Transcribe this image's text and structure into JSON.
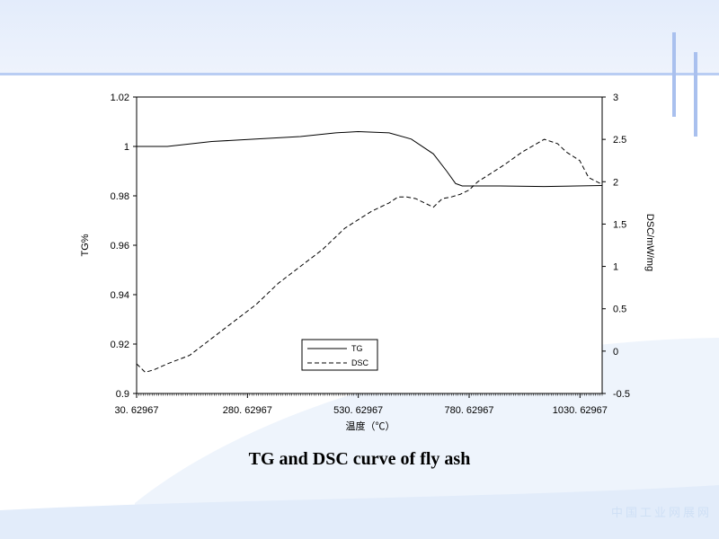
{
  "slide": {
    "title": "TG and DSC curve of fly ash",
    "watermark": "中国工业网展网"
  },
  "chart_data": {
    "type": "line",
    "xlabel": "温度（℃）",
    "ylabel_left": "TG%",
    "ylabel_right": "DSC/mW/mg",
    "x_ticks": [
      30.62967,
      280.62967,
      530.62967,
      780.62967,
      1030.62967
    ],
    "x_tick_labels": [
      "30. 62967",
      "280. 62967",
      "530. 62967",
      "780. 62967",
      "1030. 62967"
    ],
    "xlim": [
      30.62967,
      1080.62967
    ],
    "ylim_left": [
      0.9,
      1.02
    ],
    "y_ticks_left": [
      0.9,
      0.92,
      0.94,
      0.96,
      0.98,
      1,
      1.02
    ],
    "y_tick_labels_left": [
      "0.9",
      "0.92",
      "0.94",
      "0.96",
      "0.98",
      "1",
      "1.02"
    ],
    "ylim_right": [
      -0.5,
      3
    ],
    "y_ticks_right": [
      -0.5,
      0,
      0.5,
      1,
      1.5,
      2,
      2.5,
      3
    ],
    "y_tick_labels_right": [
      "-0.5",
      "0",
      "0.5",
      "1",
      "1.5",
      "2",
      "2.5",
      "3"
    ],
    "legend_position": "bottom-center",
    "series": [
      {
        "name": "TG",
        "axis": "left",
        "style": "solid",
        "x": [
          30.6,
          100,
          200,
          300,
          400,
          480,
          530,
          600,
          650,
          700,
          730,
          750,
          765,
          780,
          850,
          950,
          1080
        ],
        "y": [
          1.0,
          1.0,
          1.002,
          1.003,
          1.004,
          1.0055,
          1.006,
          1.0055,
          1.003,
          0.997,
          0.99,
          0.985,
          0.984,
          0.984,
          0.984,
          0.9838,
          0.9842
        ]
      },
      {
        "name": "DSC",
        "axis": "right",
        "style": "dashed",
        "x": [
          30.6,
          50,
          70,
          100,
          150,
          200,
          250,
          300,
          350,
          400,
          450,
          480,
          500,
          530,
          560,
          600,
          620,
          640,
          660,
          680,
          700,
          720,
          740,
          760,
          780,
          800,
          830,
          860,
          900,
          950,
          980,
          1000,
          1030,
          1050,
          1080
        ],
        "y": [
          -0.15,
          -0.25,
          -0.22,
          -0.15,
          -0.05,
          0.15,
          0.35,
          0.55,
          0.8,
          1.0,
          1.2,
          1.35,
          1.45,
          1.55,
          1.65,
          1.75,
          1.82,
          1.82,
          1.8,
          1.75,
          1.7,
          1.8,
          1.82,
          1.85,
          1.9,
          2.0,
          2.1,
          2.2,
          2.35,
          2.5,
          2.45,
          2.35,
          2.25,
          2.05,
          1.97
        ]
      }
    ]
  }
}
